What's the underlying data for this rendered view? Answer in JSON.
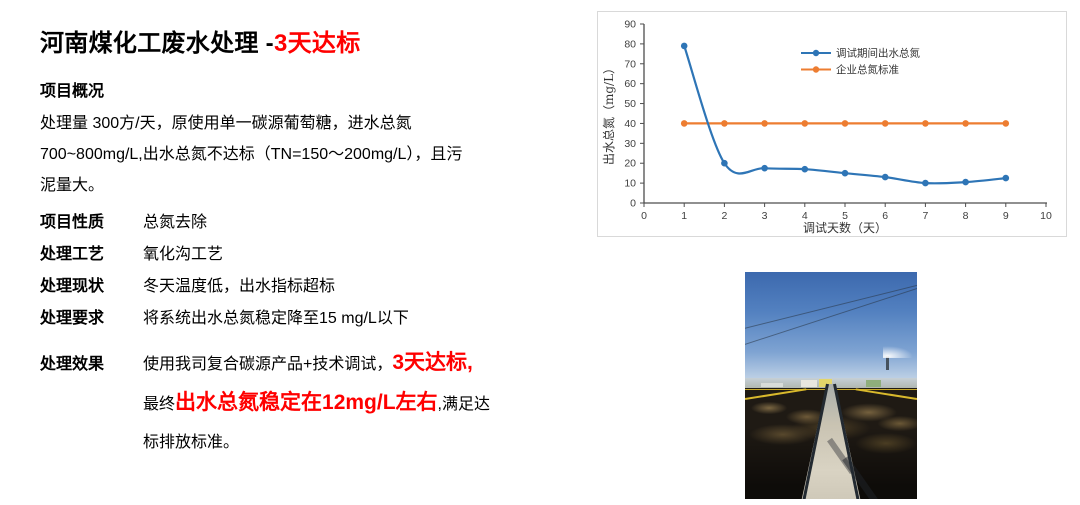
{
  "slide": {
    "title_black": "河南煤化工废水处理 -",
    "title_red": "3天达标",
    "overview_heading": "项目概况",
    "overview_lines": [
      "处理量 300方/天，原使用单一碳源葡萄糖，进水总氮",
      "700~800mg/L,出水总氮不达标（TN=150～200mg/L），且污",
      "泥量大。"
    ],
    "items": [
      {
        "label": "项目性质",
        "value": "总氮去除"
      },
      {
        "label": "处理工艺",
        "value": "氧化沟工艺"
      },
      {
        "label": "处理现状",
        "value": "冬天温度低，出水指标超标"
      },
      {
        "label": "处理要求",
        "value": "将系统出水总氮稳定降至15 mg/L以下"
      }
    ],
    "effect": {
      "label": "处理效果",
      "line1_normal": "使用我司复合碳源产品+技术调试，",
      "line1_red": "3天达标,",
      "line2_prefix": "最终",
      "line2_red": "出水总氮稳定在12mg/L左右",
      "line2_suffix": ",满足达",
      "line3": "标排放标准。"
    }
  },
  "colors": {
    "accent_red": "#FF0000",
    "series_blue": "#2E75B6",
    "series_orange": "#ED7D31",
    "chart_border": "#D9D9D9",
    "axis_gray": "#4D4D4D"
  },
  "chart_data": {
    "type": "line",
    "x": [
      1,
      2,
      3,
      4,
      5,
      6,
      7,
      8,
      9
    ],
    "series": [
      {
        "name": "调试期间出水总氮",
        "color": "#2E75B6",
        "smooth": true,
        "values": [
          79,
          20,
          17.5,
          17,
          15,
          13,
          10,
          10.5,
          12.5
        ]
      },
      {
        "name": "企业总氮标准",
        "color": "#ED7D31",
        "smooth": false,
        "values": [
          40,
          40,
          40,
          40,
          40,
          40,
          40,
          40,
          40
        ]
      }
    ],
    "xlabel": "调试天数（天）",
    "ylabel": "出水总氮（mg/L）",
    "xlim": [
      0,
      10
    ],
    "ylim": [
      0,
      90
    ],
    "x_ticks": [
      0,
      1,
      2,
      3,
      4,
      5,
      6,
      7,
      8,
      9,
      10
    ],
    "y_ticks": [
      0,
      10,
      20,
      30,
      40,
      50,
      60,
      70,
      80,
      90
    ],
    "legend_position": "top-center",
    "grid": false
  }
}
